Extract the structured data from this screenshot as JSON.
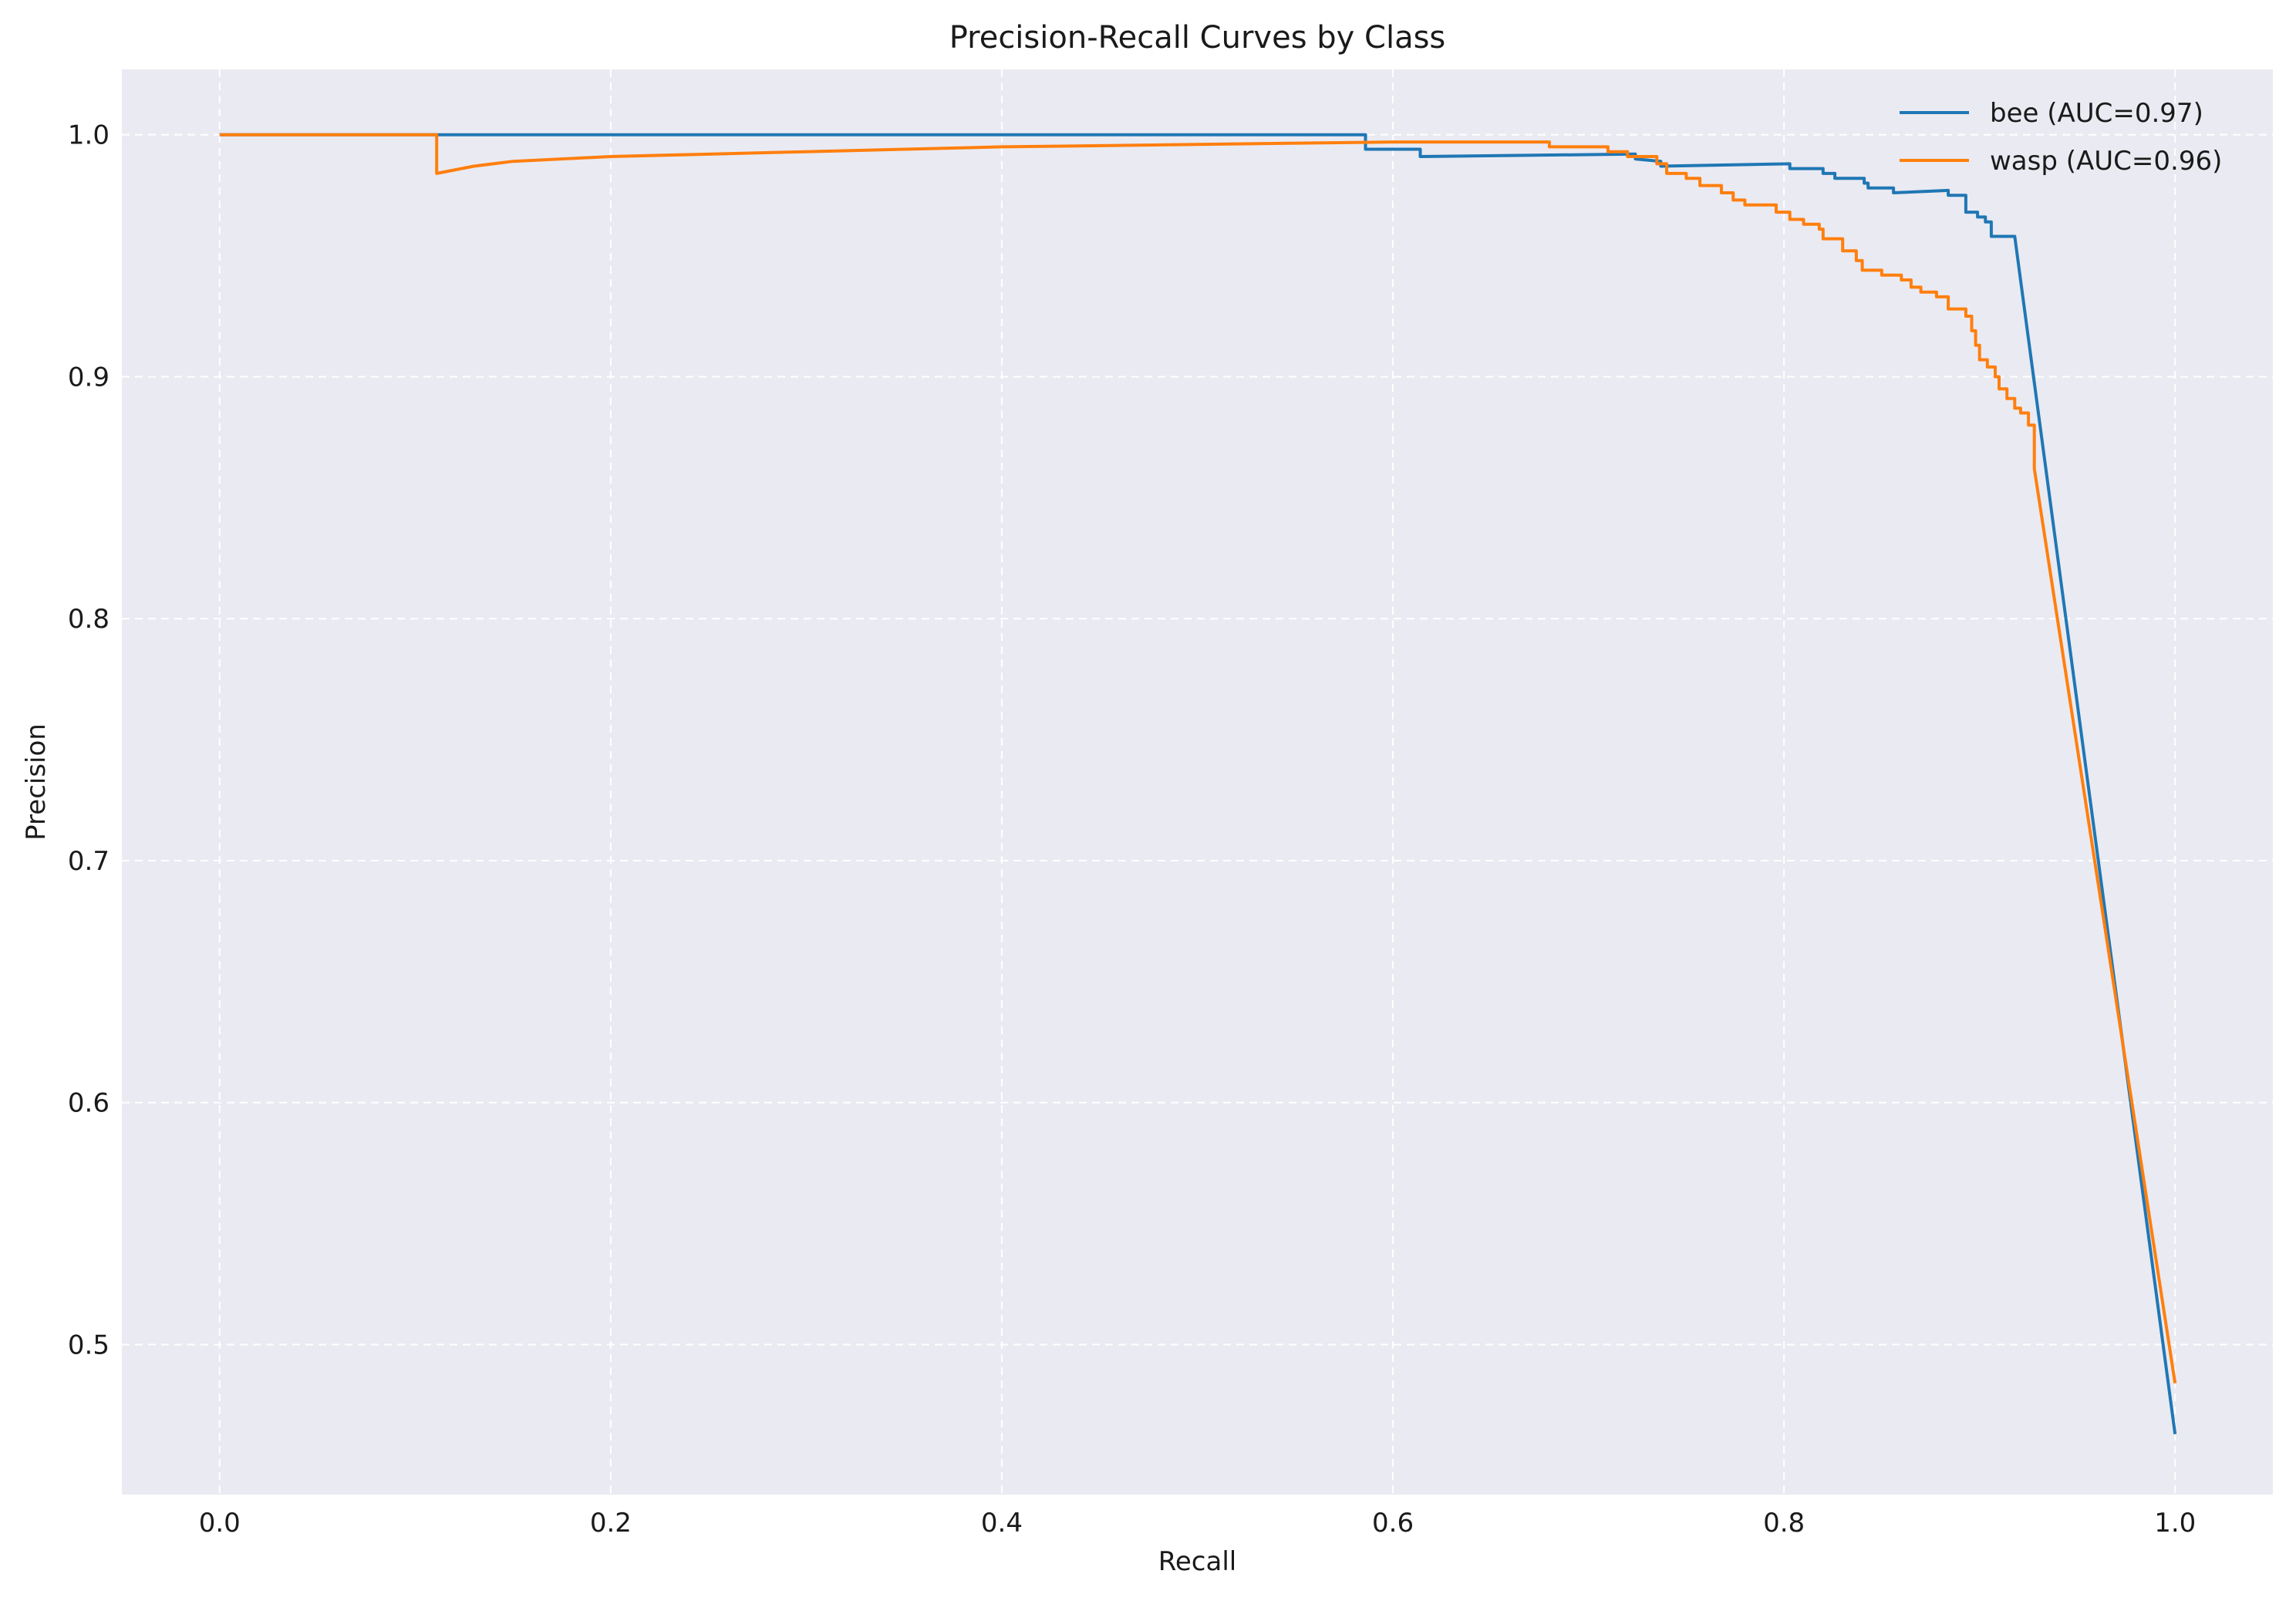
{
  "chart_data": {
    "type": "line",
    "title": "Precision-Recall Curves by Class",
    "xlabel": "Recall",
    "ylabel": "Precision",
    "xlim": [
      -0.05,
      1.05
    ],
    "ylim": [
      0.438,
      1.027
    ],
    "xticks": [
      {
        "value": 0.0,
        "label": "0.0"
      },
      {
        "value": 0.2,
        "label": "0.2"
      },
      {
        "value": 0.4,
        "label": "0.4"
      },
      {
        "value": 0.6,
        "label": "0.6"
      },
      {
        "value": 0.8,
        "label": "0.8"
      },
      {
        "value": 1.0,
        "label": "1.0"
      }
    ],
    "yticks": [
      {
        "value": 0.5,
        "label": "0.5"
      },
      {
        "value": 0.6,
        "label": "0.6"
      },
      {
        "value": 0.7,
        "label": "0.7"
      },
      {
        "value": 0.8,
        "label": "0.8"
      },
      {
        "value": 0.9,
        "label": "0.9"
      },
      {
        "value": 1.0,
        "label": "1.0"
      }
    ],
    "grid": true,
    "legend_position": "top-right",
    "series": [
      {
        "name": "bee (AUC=0.97)",
        "color": "#1f77b4",
        "points": [
          [
            0.0,
            1.0
          ],
          [
            0.586,
            1.0
          ],
          [
            0.586,
            0.994
          ],
          [
            0.614,
            0.994
          ],
          [
            0.614,
            0.991
          ],
          [
            0.724,
            0.992
          ],
          [
            0.724,
            0.99
          ],
          [
            0.737,
            0.989
          ],
          [
            0.737,
            0.987
          ],
          [
            0.803,
            0.988
          ],
          [
            0.803,
            0.986
          ],
          [
            0.82,
            0.986
          ],
          [
            0.82,
            0.984
          ],
          [
            0.826,
            0.984
          ],
          [
            0.826,
            0.982
          ],
          [
            0.841,
            0.982
          ],
          [
            0.841,
            0.98
          ],
          [
            0.843,
            0.98
          ],
          [
            0.843,
            0.978
          ],
          [
            0.856,
            0.978
          ],
          [
            0.856,
            0.976
          ],
          [
            0.884,
            0.977
          ],
          [
            0.884,
            0.975
          ],
          [
            0.893,
            0.975
          ],
          [
            0.893,
            0.968
          ],
          [
            0.899,
            0.968
          ],
          [
            0.899,
            0.966
          ],
          [
            0.903,
            0.966
          ],
          [
            0.903,
            0.964
          ],
          [
            0.906,
            0.964
          ],
          [
            0.906,
            0.958
          ],
          [
            0.918,
            0.958
          ],
          [
            1.0,
            0.463
          ]
        ]
      },
      {
        "name": "wasp (AUC=0.96)",
        "color": "#ff7f0e",
        "points": [
          [
            0.0,
            1.0
          ],
          [
            0.111,
            1.0
          ],
          [
            0.111,
            0.984
          ],
          [
            0.13,
            0.987
          ],
          [
            0.15,
            0.989
          ],
          [
            0.2,
            0.991
          ],
          [
            0.3,
            0.993
          ],
          [
            0.4,
            0.995
          ],
          [
            0.5,
            0.996
          ],
          [
            0.6,
            0.997
          ],
          [
            0.68,
            0.997
          ],
          [
            0.68,
            0.995
          ],
          [
            0.71,
            0.995
          ],
          [
            0.71,
            0.993
          ],
          [
            0.72,
            0.993
          ],
          [
            0.72,
            0.991
          ],
          [
            0.735,
            0.991
          ],
          [
            0.735,
            0.988
          ],
          [
            0.74,
            0.988
          ],
          [
            0.74,
            0.984
          ],
          [
            0.75,
            0.984
          ],
          [
            0.75,
            0.982
          ],
          [
            0.757,
            0.982
          ],
          [
            0.757,
            0.979
          ],
          [
            0.768,
            0.979
          ],
          [
            0.768,
            0.976
          ],
          [
            0.774,
            0.976
          ],
          [
            0.774,
            0.973
          ],
          [
            0.78,
            0.973
          ],
          [
            0.78,
            0.971
          ],
          [
            0.796,
            0.971
          ],
          [
            0.796,
            0.968
          ],
          [
            0.803,
            0.968
          ],
          [
            0.803,
            0.965
          ],
          [
            0.81,
            0.965
          ],
          [
            0.81,
            0.963
          ],
          [
            0.818,
            0.963
          ],
          [
            0.818,
            0.961
          ],
          [
            0.82,
            0.961
          ],
          [
            0.82,
            0.957
          ],
          [
            0.83,
            0.957
          ],
          [
            0.83,
            0.952
          ],
          [
            0.837,
            0.952
          ],
          [
            0.837,
            0.948
          ],
          [
            0.84,
            0.948
          ],
          [
            0.84,
            0.944
          ],
          [
            0.85,
            0.944
          ],
          [
            0.85,
            0.942
          ],
          [
            0.86,
            0.942
          ],
          [
            0.86,
            0.94
          ],
          [
            0.865,
            0.94
          ],
          [
            0.865,
            0.937
          ],
          [
            0.87,
            0.937
          ],
          [
            0.87,
            0.935
          ],
          [
            0.878,
            0.935
          ],
          [
            0.878,
            0.933
          ],
          [
            0.884,
            0.933
          ],
          [
            0.884,
            0.928
          ],
          [
            0.893,
            0.928
          ],
          [
            0.893,
            0.925
          ],
          [
            0.896,
            0.925
          ],
          [
            0.896,
            0.919
          ],
          [
            0.898,
            0.919
          ],
          [
            0.898,
            0.913
          ],
          [
            0.9,
            0.913
          ],
          [
            0.9,
            0.907
          ],
          [
            0.904,
            0.907
          ],
          [
            0.904,
            0.904
          ],
          [
            0.908,
            0.904
          ],
          [
            0.908,
            0.9
          ],
          [
            0.91,
            0.9
          ],
          [
            0.91,
            0.895
          ],
          [
            0.914,
            0.895
          ],
          [
            0.914,
            0.891
          ],
          [
            0.918,
            0.891
          ],
          [
            0.918,
            0.887
          ],
          [
            0.921,
            0.887
          ],
          [
            0.921,
            0.885
          ],
          [
            0.925,
            0.885
          ],
          [
            0.925,
            0.88
          ],
          [
            0.928,
            0.88
          ],
          [
            0.928,
            0.862
          ],
          [
            1.0,
            0.484
          ]
        ]
      }
    ]
  }
}
